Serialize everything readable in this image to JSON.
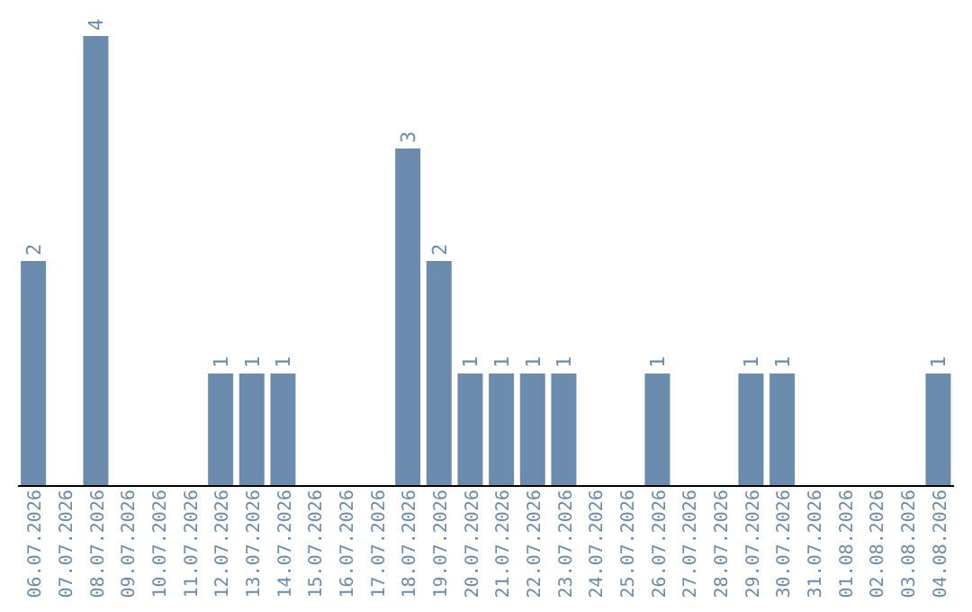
{
  "chart_data": {
    "type": "bar",
    "categories": [
      "06.07.2026",
      "07.07.2026",
      "08.07.2026",
      "09.07.2026",
      "10.07.2026",
      "11.07.2026",
      "12.07.2026",
      "13.07.2026",
      "14.07.2026",
      "15.07.2026",
      "16.07.2026",
      "17.07.2026",
      "18.07.2026",
      "19.07.2026",
      "20.07.2026",
      "21.07.2026",
      "22.07.2026",
      "23.07.2026",
      "24.07.2026",
      "25.07.2026",
      "26.07.2026",
      "27.07.2026",
      "28.07.2026",
      "29.07.2026",
      "30.07.2026",
      "31.07.2026",
      "01.08.2026",
      "02.08.2026",
      "03.08.2026",
      "04.08.2026"
    ],
    "values": [
      2,
      0,
      4,
      0,
      0,
      0,
      1,
      1,
      1,
      0,
      0,
      0,
      3,
      2,
      1,
      1,
      1,
      1,
      0,
      0,
      1,
      0,
      0,
      1,
      1,
      0,
      0,
      0,
      0,
      1
    ],
    "value_labels": [
      "2",
      null,
      "4",
      null,
      null,
      null,
      "1",
      "1",
      "1",
      null,
      null,
      null,
      "3",
      "2",
      "1",
      "1",
      "1",
      "1",
      null,
      null,
      "1",
      null,
      null,
      "1",
      "1",
      null,
      null,
      null,
      null,
      "1"
    ],
    "color": "#6b8cac",
    "tick_labels": "x",
    "grid": false,
    "legend": false
  }
}
